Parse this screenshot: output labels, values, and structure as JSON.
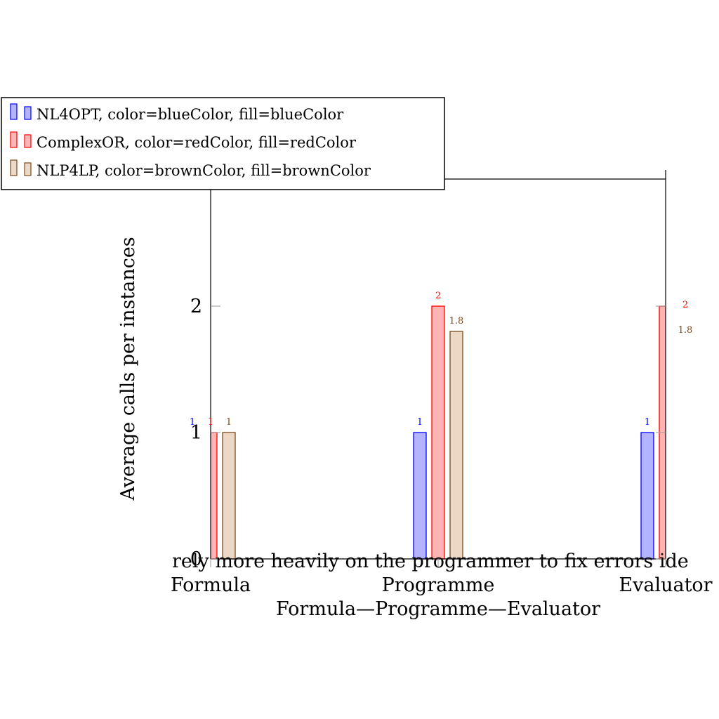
{
  "chart_data": {
    "type": "bar",
    "categories": [
      "Formula",
      "Programme",
      "Evaluator"
    ],
    "xlabel": "Formula—Programme—Evaluator",
    "ylabel": "Average calls per instances",
    "ylim": [
      0,
      3
    ],
    "yticks": [
      "0",
      "1",
      "2"
    ],
    "grid": false,
    "legend_position": "top-left",
    "series": [
      {
        "name": "NL4OPT, color=blueColor, fill=blueColor",
        "values": [
          1,
          1,
          1
        ],
        "labels": [
          "1",
          "1",
          "1"
        ],
        "stroke": "#0000ff",
        "fill": "#b3b3ff"
      },
      {
        "name": "ComplexOR, color=redColor, fill=redColor",
        "values": [
          1,
          2,
          2
        ],
        "labels": [
          "1",
          "2",
          "2"
        ],
        "stroke": "#ff0000",
        "fill": "#ffb3b3"
      },
      {
        "name": "NLP4LP, color=brownColor, fill=brownColor",
        "values": [
          1,
          1.8,
          1.8
        ],
        "labels": [
          "1",
          "1.8",
          "1.8"
        ],
        "stroke": "#7a4a1e",
        "fill": "#ebd9c5"
      }
    ],
    "annotation": "rely more heavily on the programmer to fix errors ide"
  }
}
